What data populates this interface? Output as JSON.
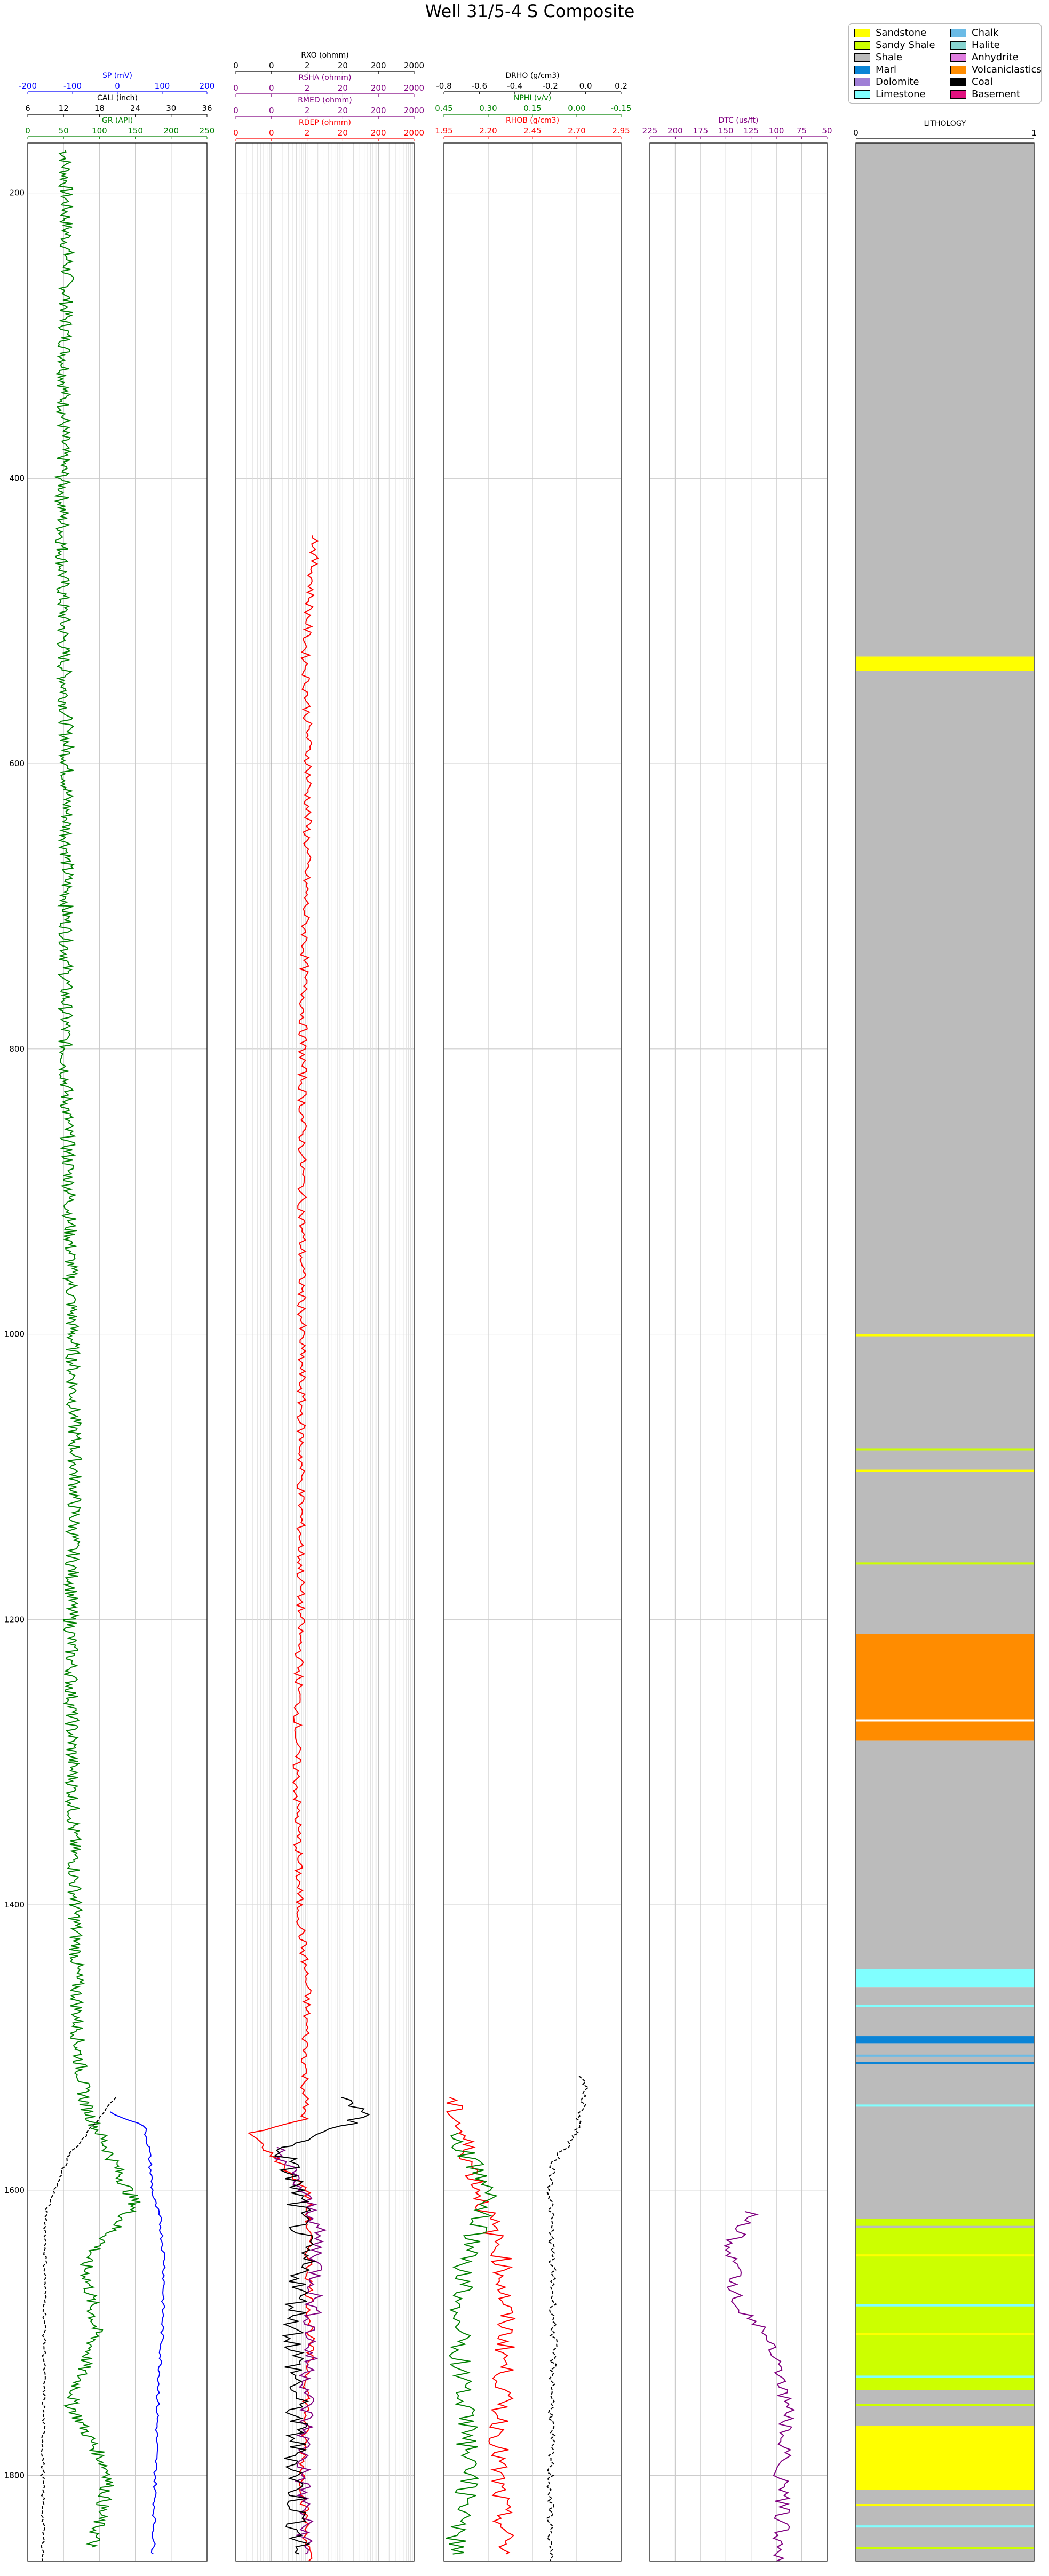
{
  "title": "Well 31/5-4 S Composite",
  "depth_ticks": [
    "200",
    "400",
    "600",
    "800",
    "1000",
    "1200",
    "1400",
    "1600",
    "1800"
  ],
  "track1": {
    "curves": [
      {
        "name": "SP (mV)",
        "ticks": [
          "-200",
          "-100",
          "0",
          "100",
          "200"
        ],
        "color": "#0000ff"
      },
      {
        "name": "CALI (inch)",
        "ticks": [
          "6",
          "12",
          "18",
          "24",
          "30",
          "36"
        ],
        "color": "#000000"
      },
      {
        "name": "GR (API)",
        "ticks": [
          "0",
          "50",
          "100",
          "150",
          "200",
          "250"
        ],
        "color": "#008000"
      }
    ]
  },
  "track2": {
    "curves": [
      {
        "name": "RXO (ohmm)",
        "ticks": [
          "0",
          "0",
          "2",
          "20",
          "200",
          "2000"
        ],
        "color": "#000000"
      },
      {
        "name": "RSHA (ohmm)",
        "ticks": [
          "0",
          "0",
          "2",
          "20",
          "200",
          "2000"
        ],
        "color": "#800080"
      },
      {
        "name": "RMED (ohmm)",
        "ticks": [
          "0",
          "0",
          "2",
          "20",
          "200",
          "2000"
        ],
        "color": "#800080"
      },
      {
        "name": "RDEP (ohmm)",
        "ticks": [
          "0",
          "0",
          "2",
          "20",
          "200",
          "2000"
        ],
        "color": "#ff0000"
      }
    ]
  },
  "track3": {
    "curves": [
      {
        "name": "DRHO (g/cm3)",
        "ticks": [
          "-0.8",
          "-0.6",
          "-0.4",
          "-0.2",
          "0.0",
          "0.2"
        ],
        "color": "#000000"
      },
      {
        "name": "NPHI (v/v)",
        "ticks": [
          "0.45",
          "0.30",
          "0.15",
          "0.00",
          "-0.15"
        ],
        "color": "#008000"
      },
      {
        "name": "RHOB (g/cm3)",
        "ticks": [
          "1.95",
          "2.20",
          "2.45",
          "2.70",
          "2.95"
        ],
        "color": "#ff0000"
      }
    ]
  },
  "track4": {
    "curves": [
      {
        "name": "DTC (us/ft)",
        "ticks": [
          "225",
          "200",
          "175",
          "150",
          "125",
          "100",
          "75",
          "50"
        ],
        "color": "#800080"
      }
    ]
  },
  "track5": {
    "title": "LITHOLOGY",
    "ticks": [
      "0",
      "1"
    ]
  },
  "legend": [
    {
      "label": "Sandstone",
      "color": "#ffff00"
    },
    {
      "label": "Sandy Shale",
      "color": "#ccff00"
    },
    {
      "label": "Shale",
      "color": "#bbbbbb"
    },
    {
      "label": "Marl",
      "color": "#0a84d6"
    },
    {
      "label": "Dolomite",
      "color": "#9f7fd6"
    },
    {
      "label": "Limestone",
      "color": "#80ffff"
    },
    {
      "label": "Chalk",
      "color": "#6bbbe6"
    },
    {
      "label": "Halite",
      "color": "#87d4d0"
    },
    {
      "label": "Anhydrite",
      "color": "#e07ee0"
    },
    {
      "label": "Volcaniclastics",
      "color": "#ff8c00"
    },
    {
      "label": "Coal",
      "color": "#000000"
    },
    {
      "label": "Basement",
      "color": "#e0117f"
    }
  ],
  "chart_data": {
    "type": "line",
    "title": "Well 31/5-4 S Composite",
    "depth_axis": {
      "range": [
        165,
        1860
      ],
      "inverted": true,
      "ticks": [
        200,
        400,
        600,
        800,
        1000,
        1200,
        1400,
        1600,
        1800
      ]
    },
    "grid": true,
    "legend_position": "top-right",
    "tracks": [
      {
        "series": [
          {
            "name": "GR (API)",
            "range": [
              0,
              250
            ],
            "depth": [
              170,
              250,
              350,
              450,
              520,
              600,
              700,
              800,
              900,
              1000,
              1100,
              1200,
              1300,
              1400,
              1500,
              1540,
              1570,
              1610,
              1650,
              1700,
              1750,
              1800,
              1850
            ],
            "values": [
              52,
              55,
              50,
              48,
              50,
              55,
              54,
              52,
              58,
              62,
              66,
              60,
              62,
              66,
              70,
              80,
              110,
              150,
              80,
              95,
              60,
              115,
              90
            ]
          },
          {
            "name": "CALI (inch)",
            "range": [
              6,
              36
            ],
            "depth": [
              1535,
              1560,
              1575,
              1600,
              1615,
              1700,
              1800,
              1850,
              1860
            ],
            "values": [
              20.5,
              16,
              13,
              10.5,
              9,
              8.8,
              8.5,
              8.6,
              8.5
            ]
          },
          {
            "name": "SP (mV)",
            "range": [
              -200,
              200
            ],
            "depth": [
              1545,
              1555,
              1570,
              1590,
              1605,
              1620,
              1650,
              1700,
              1750,
              1800,
              1855
            ],
            "values": [
              -20,
              60,
              70,
              75,
              80,
              95,
              105,
              100,
              90,
              85,
              80
            ]
          }
        ]
      },
      {
        "series": [
          {
            "name": "RDEP (ohmm)",
            "range": [
              0.02,
              2000
            ],
            "scale": "log",
            "depth": [
              440,
              520,
              600,
              800,
              1000,
              1200,
              1300,
              1400,
              1460,
              1500,
              1550,
              1560,
              1600,
              1700,
              1800,
              1860
            ],
            "values": [
              3.5,
              1.8,
              2.2,
              1.5,
              1.4,
              1.3,
              1.0,
              1.2,
              2.0,
              1.8,
              1.7,
              0.05,
              2.0,
              2.5,
              1.5,
              2.2
            ]
          },
          {
            "name": "RMED (ohmm)",
            "range": [
              0.02,
              2000
            ],
            "scale": "log",
            "depth": [
              1570,
              1620,
              1650,
              1700,
              1750,
              1800,
              1855
            ],
            "values": [
              0.3,
              3.5,
              4.0,
              2.5,
              2.0,
              1.5,
              1.8
            ]
          },
          {
            "name": "RXO (ohmm)",
            "range": [
              0.02,
              2000
            ],
            "scale": "log",
            "depth": [
              1535,
              1545,
              1555,
              1570,
              1600,
              1650,
              1700,
              1800,
              1855
            ],
            "values": [
              30,
              60,
              25,
              0.4,
              1.0,
              1.5,
              0.9,
              1.0,
              1.2
            ]
          }
        ]
      },
      {
        "series": [
          {
            "name": "RHOB (g/cm3)",
            "range": [
              1.95,
              2.95
            ],
            "depth": [
              1535,
              1560,
              1600,
              1650,
              1700,
              1800,
              1855
            ],
            "values": [
              1.98,
              2.05,
              2.15,
              2.28,
              2.3,
              2.25,
              2.3
            ]
          },
          {
            "name": "NPHI (v/v)",
            "range": [
              0.45,
              -0.15
            ],
            "depth": [
              1560,
              1600,
              1650,
              1700,
              1800,
              1855
            ],
            "values": [
              0.42,
              0.3,
              0.38,
              0.4,
              0.36,
              0.42
            ]
          },
          {
            "name": "DRHO (g/cm3)",
            "range": [
              -0.8,
              0.2
            ],
            "depth": [
              1520,
              1530,
              1560,
              1580,
              1600,
              1700,
              1800,
              1860
            ],
            "values": [
              -0.02,
              0.0,
              -0.05,
              -0.18,
              -0.2,
              -0.18,
              -0.2,
              -0.2
            ]
          }
        ]
      },
      {
        "series": [
          {
            "name": "DTC (us/ft)",
            "range": [
              225,
              50
            ],
            "depth": [
              1615,
              1640,
              1680,
              1700,
              1750,
              1800,
              1850,
              1860
            ],
            "values": [
              125,
              145,
              140,
              110,
              90,
              95,
              95,
              100
            ]
          }
        ]
      },
      {
        "type": "lithology",
        "intervals": [
          {
            "top": 165,
            "bottom": 525,
            "lith": "Shale"
          },
          {
            "top": 525,
            "bottom": 535,
            "lith": "Sandstone"
          },
          {
            "top": 535,
            "bottom": 1210,
            "lith": "Shale"
          },
          {
            "top": 1210,
            "bottom": 1285,
            "lith": "Volcaniclastics"
          },
          {
            "top": 1285,
            "bottom": 1445,
            "lith": "Shale"
          },
          {
            "top": 1445,
            "bottom": 1458,
            "lith": "Limestone"
          },
          {
            "top": 1458,
            "bottom": 1492,
            "lith": "Shale"
          },
          {
            "top": 1492,
            "bottom": 1497,
            "lith": "Marl"
          },
          {
            "top": 1497,
            "bottom": 1620,
            "lith": "Shale"
          },
          {
            "top": 1620,
            "bottom": 1740,
            "lith": "Sandy Shale"
          },
          {
            "top": 1740,
            "bottom": 1765,
            "lith": "Shale"
          },
          {
            "top": 1765,
            "bottom": 1810,
            "lith": "Sandstone"
          },
          {
            "top": 1810,
            "bottom": 1860,
            "lith": "Shale"
          }
        ]
      }
    ]
  }
}
